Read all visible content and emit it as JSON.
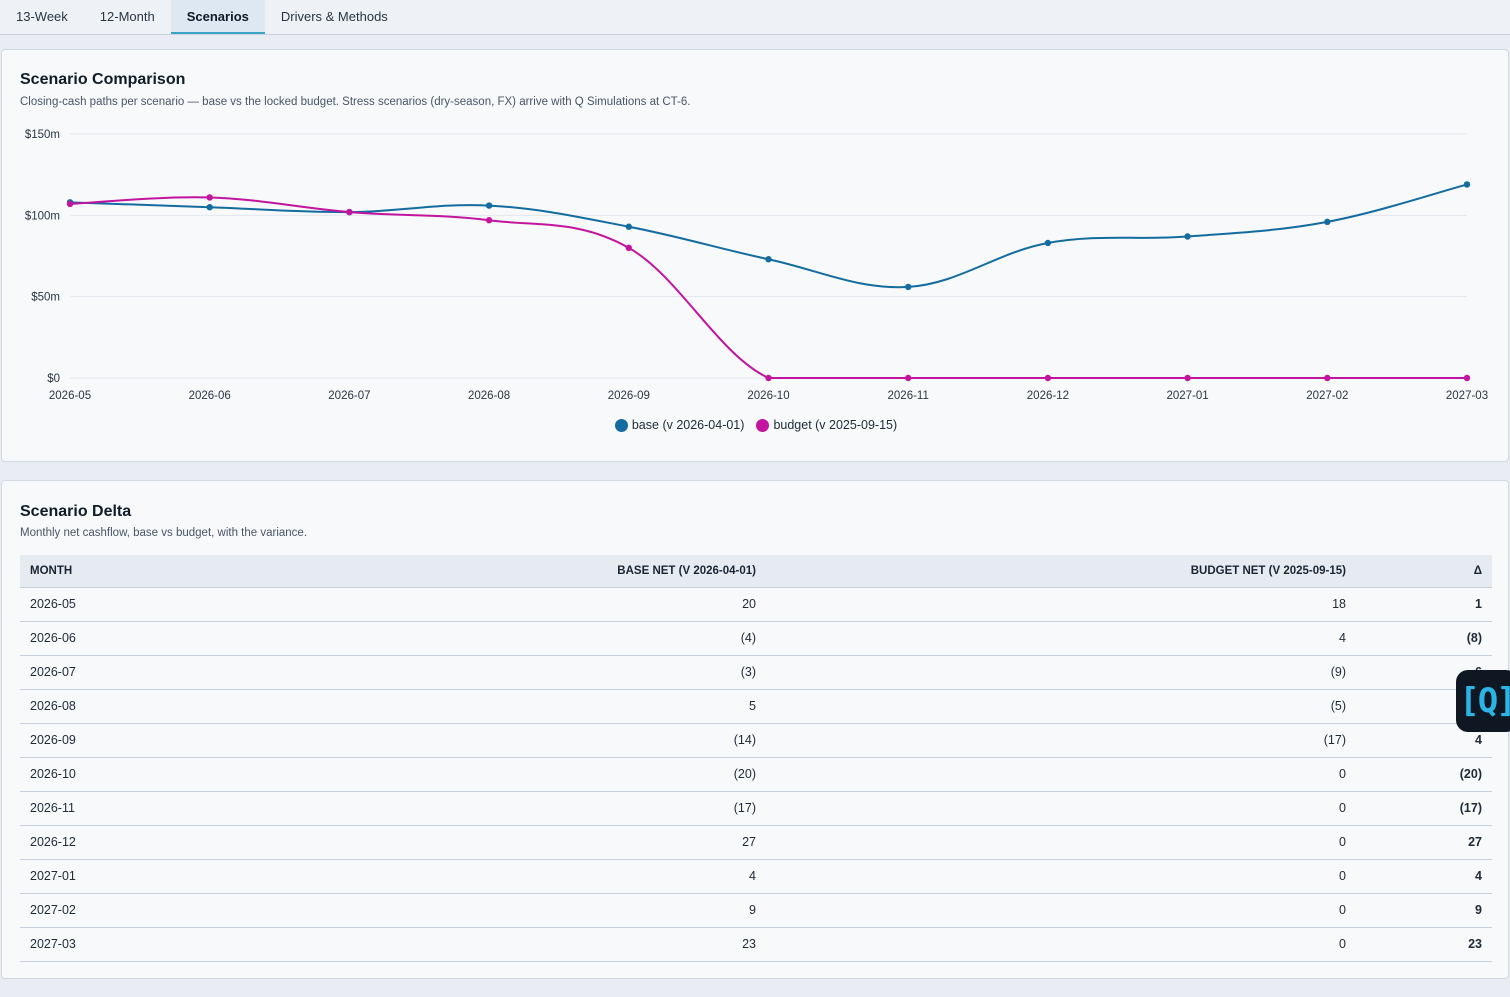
{
  "tabs": [
    {
      "label": "13-Week",
      "active": false
    },
    {
      "label": "12-Month",
      "active": false
    },
    {
      "label": "Scenarios",
      "active": true
    },
    {
      "label": "Drivers & Methods",
      "active": false
    }
  ],
  "comparison": {
    "title": "Scenario Comparison",
    "subtitle": "Closing-cash paths per scenario — base vs the locked budget. Stress scenarios (dry-season, FX) arrive with Q Simulations at CT-6."
  },
  "chart_data": {
    "type": "line",
    "x": [
      "2026-05",
      "2026-06",
      "2026-07",
      "2026-08",
      "2026-09",
      "2026-10",
      "2026-11",
      "2026-12",
      "2027-01",
      "2027-02",
      "2027-03"
    ],
    "ylim": [
      0,
      150
    ],
    "yticks": [
      0,
      50,
      100,
      150
    ],
    "ytick_labels": [
      "$0",
      "$50m",
      "$100m",
      "$150m"
    ],
    "grid": true,
    "legend_position": "bottom-center",
    "series": [
      {
        "name": "base (v 2026-04-01)",
        "color": "#136c9f",
        "values": [
          108,
          105,
          102,
          106,
          93,
          73,
          56,
          83,
          87,
          96,
          119
        ]
      },
      {
        "name": "budget (v 2025-09-15)",
        "color": "#c2149f",
        "values": [
          107,
          111,
          102,
          97,
          80,
          0,
          0,
          0,
          0,
          0,
          0
        ]
      }
    ]
  },
  "delta": {
    "title": "Scenario Delta",
    "subtitle": "Monthly net cashflow, base vs budget, with the variance.",
    "columns": [
      "Month",
      "Base net (v 2026-04-01)",
      "Budget net (v 2025-09-15)",
      "Δ"
    ],
    "rows": [
      [
        "2026-05",
        "20",
        "18",
        "1"
      ],
      [
        "2026-06",
        "(4)",
        "4",
        "(8)"
      ],
      [
        "2026-07",
        "(3)",
        "(9)",
        "6"
      ],
      [
        "2026-08",
        "5",
        "(5)",
        "10"
      ],
      [
        "2026-09",
        "(14)",
        "(17)",
        "4"
      ],
      [
        "2026-10",
        "(20)",
        "0",
        "(20)"
      ],
      [
        "2026-11",
        "(17)",
        "0",
        "(17)"
      ],
      [
        "2026-12",
        "27",
        "0",
        "27"
      ],
      [
        "2027-01",
        "4",
        "0",
        "4"
      ],
      [
        "2027-02",
        "9",
        "0",
        "9"
      ],
      [
        "2027-03",
        "23",
        "0",
        "23"
      ]
    ]
  },
  "badge": {
    "label": "[Q]"
  }
}
